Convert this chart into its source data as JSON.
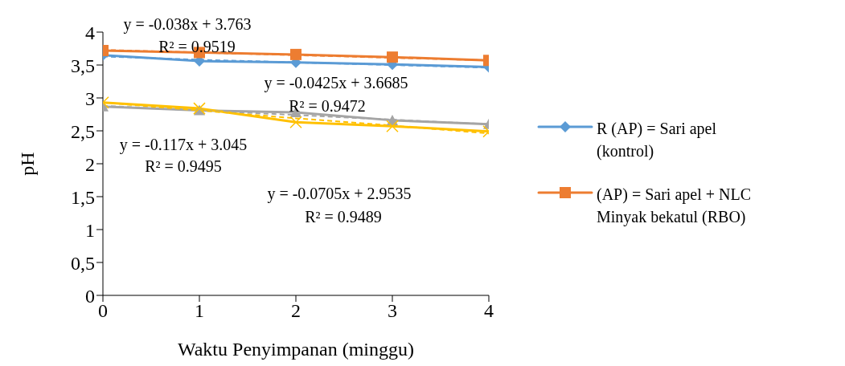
{
  "chart_data": {
    "type": "line",
    "xlabel": "Waktu Penyimpanan (minggu)",
    "ylabel": "pH",
    "x": [
      0,
      1,
      2,
      3,
      4
    ],
    "xlim": [
      0,
      4
    ],
    "xticks": [
      0,
      1,
      2,
      3,
      4
    ],
    "ylim": [
      0,
      4
    ],
    "yticks": [
      0,
      {
        "value": 0.5,
        "label": "0,5"
      },
      1,
      {
        "value": 1.5,
        "label": "1,5"
      },
      2,
      {
        "value": 2.5,
        "label": "2,5"
      },
      3,
      {
        "value": 3.5,
        "label": "3,5"
      },
      4
    ],
    "grid": false,
    "legend": "right",
    "line_style": "solid",
    "series": [
      {
        "name": "R (AP) = Sari apel (kontrol)",
        "color": "#5b9bd5",
        "marker": "diamond",
        "values": [
          3.65,
          3.56,
          3.54,
          3.51,
          3.47
        ]
      },
      {
        "name": "(AP) = Sari apel + NLC Minyak bekatul (RBO)",
        "color": "#ed7d31",
        "marker": "square",
        "values": [
          3.72,
          3.69,
          3.66,
          3.62,
          3.57
        ]
      },
      {
        "color": "#a5a5a5",
        "marker": "triangle",
        "values": [
          2.87,
          2.81,
          2.78,
          2.66,
          2.6
        ]
      },
      {
        "color": "#ffc000",
        "marker": "cross",
        "values": [
          2.93,
          2.84,
          2.63,
          2.57,
          2.49
        ]
      },
      {
        "type": "line",
        "color": "#5b9bd5",
        "line_style": "dashed",
        "values": [
          3.63,
          3.58,
          3.54,
          3.5,
          3.46
        ]
      },
      {
        "type": "line",
        "color": "#ed7d31",
        "line_style": "dashed",
        "values": [
          3.73,
          3.69,
          3.65,
          3.61,
          3.57
        ]
      },
      {
        "type": "line",
        "color": "#a5a5a5",
        "line_style": "dashed",
        "values": [
          2.88,
          2.81,
          2.74,
          2.67,
          2.6
        ]
      },
      {
        "type": "line",
        "color": "#ffc000",
        "line_style": "dashed",
        "values": [
          2.93,
          2.81,
          2.69,
          2.58,
          2.46
        ]
      }
    ],
    "annotations": [
      "y = -0.038x + 3.763",
      "R² = 0.9519",
      "y = -0.0425x + 3.6685",
      "R² = 0.9472",
      "y = -0.117x + 3.045",
      "R² = 0.9495",
      "y = -0.0705x + 2.9535",
      "R² = 0.9489"
    ]
  }
}
